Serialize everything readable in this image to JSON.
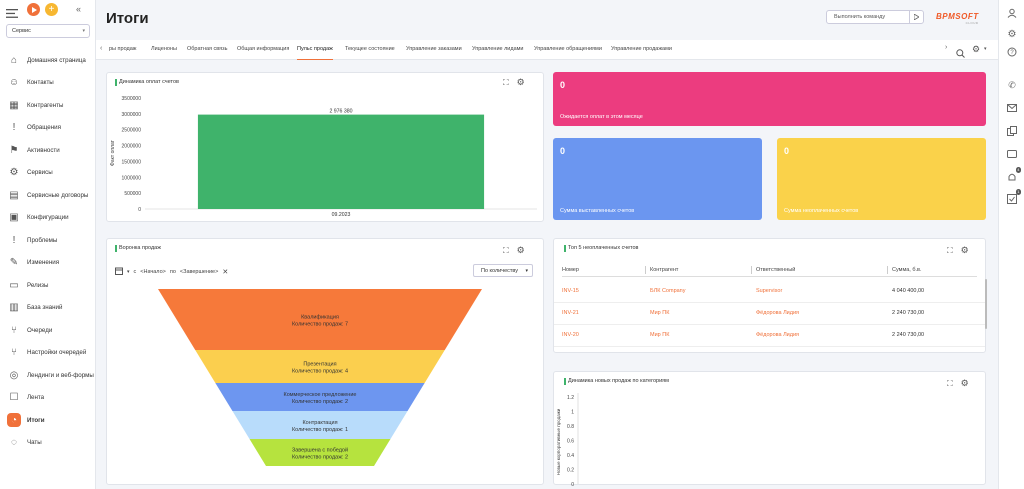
{
  "sidebar": {
    "workspace": "Сервис",
    "items": [
      {
        "label": "Домашняя страница",
        "icon": "home-icon"
      },
      {
        "label": "Контакты",
        "icon": "contact-icon"
      },
      {
        "label": "Контрагенты",
        "icon": "building-icon"
      },
      {
        "label": "Обращения",
        "icon": "alert-icon"
      },
      {
        "label": "Активности",
        "icon": "flag-icon"
      },
      {
        "label": "Сервисы",
        "icon": "gear-icon"
      },
      {
        "label": "Сервисные договоры",
        "icon": "document-icon"
      },
      {
        "label": "Конфигурации",
        "icon": "config-icon"
      },
      {
        "label": "Проблемы",
        "icon": "problem-icon"
      },
      {
        "label": "Изменения",
        "icon": "pencil-icon"
      },
      {
        "label": "Релизы",
        "icon": "release-icon"
      },
      {
        "label": "База знаний",
        "icon": "book-icon"
      },
      {
        "label": "Очереди",
        "icon": "queue-icon"
      },
      {
        "label": "Настройки очередей",
        "icon": "queue-settings-icon"
      },
      {
        "label": "Лендинги и веб-формы",
        "icon": "landing-icon"
      },
      {
        "label": "Лента",
        "icon": "feed-icon"
      },
      {
        "label": "Итоги",
        "icon": "chart-icon",
        "active": true
      },
      {
        "label": "Чаты",
        "icon": "chat-icon"
      }
    ]
  },
  "header": {
    "title": "Итоги",
    "command_placeholder": "Выполнить команду",
    "logo": "BPMSOFT",
    "logo_sub": "CLOUD"
  },
  "tabs": [
    "ры продаж",
    "Лиценоны",
    "Обратная связь",
    "Общая информация",
    "Пульс продаж",
    "Текущее состояние",
    "Управление заказами",
    "Управление лидами",
    "Управление обращениями",
    "Управление продажами"
  ],
  "active_tab": "Пульс продаж",
  "payments_chart": {
    "title": "Динамика оплат счетов",
    "ylabel": "Факт оплат",
    "chart_data": {
      "type": "bar",
      "categories": [
        "09.2023"
      ],
      "values": [
        2976380
      ],
      "value_label": "2 976 380",
      "ylim": [
        0,
        3500000
      ],
      "ticks": [
        "3500000",
        "3000000",
        "2500000",
        "2000000",
        "1500000",
        "1000000",
        "500000",
        "0"
      ],
      "color": "#3fb36b"
    }
  },
  "kpis": [
    {
      "value": "0",
      "caption": "Ожидается оплат в этом месяце",
      "color": "#ec3c7f"
    },
    {
      "value": "0",
      "caption": "Сумма выставленных счетов",
      "color": "#6b96f0"
    },
    {
      "value": "0",
      "caption": "Сумма неоплаченных счетов",
      "color": "#fad24a"
    }
  ],
  "funnel": {
    "title": "Воронка продаж",
    "filter_from": "<Начало>",
    "filter_to": "<Завершение>",
    "filter_c": "с",
    "filter_po": "по",
    "mode": "По количеству",
    "stages": [
      {
        "name": "Квалификация",
        "count": "Количество продаж: 7",
        "color": "#f6793a"
      },
      {
        "name": "Презентация",
        "count": "Количество продаж: 4",
        "color": "#fbcf4e"
      },
      {
        "name": "Коммерческое предложение",
        "count": "Количество продаж: 2",
        "color": "#6d96f0"
      },
      {
        "name": "Контрактация",
        "count": "Количество продаж: 1",
        "color": "#b8dcfb"
      },
      {
        "name": "Завершена с победой",
        "count": "Количество продаж: 2",
        "color": "#b6e33e"
      }
    ]
  },
  "unpaid": {
    "title": "Топ 5 неоплаченных счетов",
    "columns": [
      "Номер",
      "Контрагент",
      "Ответственный",
      "Сумма, б.в."
    ],
    "rows": [
      [
        "INV-15",
        "БЛК Company",
        "Supervisor",
        "4 040 400,00"
      ],
      [
        "INV-21",
        "Мир ПК",
        "Фёдорова Лидия",
        "2 240 730,00"
      ],
      [
        "INV-20",
        "Мир ПК",
        "Фёдорова Лидия",
        "2 240 730,00"
      ]
    ]
  },
  "new_sales": {
    "title": "Динамика новых продаж по категориям",
    "ylabel": "Новые корпоративные продажи",
    "chart_data": {
      "type": "line",
      "ticks": [
        "1.2",
        "1",
        "0.8",
        "0.6",
        "0.4",
        "0.2",
        "0"
      ],
      "ylim": [
        0,
        1.2
      ]
    }
  }
}
